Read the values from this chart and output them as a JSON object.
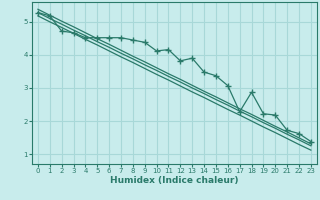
{
  "title": "",
  "xlabel": "Humidex (Indice chaleur)",
  "bg_color": "#c8ecec",
  "grid_color": "#a8d8d8",
  "line_color": "#2a7a6a",
  "xlim": [
    -0.5,
    23.5
  ],
  "ylim": [
    0.7,
    5.6
  ],
  "xticks": [
    0,
    1,
    2,
    3,
    4,
    5,
    6,
    7,
    8,
    9,
    10,
    11,
    12,
    13,
    14,
    15,
    16,
    17,
    18,
    19,
    20,
    21,
    22,
    23
  ],
  "yticks": [
    1,
    2,
    3,
    4,
    5
  ],
  "data_x": [
    0,
    1,
    2,
    3,
    4,
    5,
    6,
    7,
    8,
    9,
    10,
    11,
    12,
    13,
    14,
    15,
    16,
    17,
    18,
    19,
    20,
    21,
    22,
    23
  ],
  "data_y": [
    5.28,
    5.18,
    4.72,
    4.67,
    4.52,
    4.52,
    4.52,
    4.52,
    4.45,
    4.38,
    4.12,
    4.16,
    3.82,
    3.9,
    3.48,
    3.37,
    3.07,
    2.28,
    2.87,
    2.22,
    2.18,
    1.72,
    1.62,
    1.38
  ],
  "reg_y1": [
    5.28,
    5.1,
    4.93,
    4.75,
    4.58,
    4.4,
    4.23,
    4.05,
    3.88,
    3.7,
    3.53,
    3.35,
    3.18,
    3.0,
    2.83,
    2.65,
    2.48,
    2.3,
    2.13,
    1.95,
    1.78,
    1.6,
    1.43,
    1.25
  ],
  "reg_y2": [
    5.38,
    5.2,
    5.02,
    4.85,
    4.67,
    4.49,
    4.32,
    4.14,
    3.96,
    3.79,
    3.61,
    3.43,
    3.26,
    3.08,
    2.9,
    2.73,
    2.55,
    2.37,
    2.2,
    2.02,
    1.84,
    1.67,
    1.49,
    1.31
  ],
  "reg_y3": [
    5.18,
    5.0,
    4.83,
    4.65,
    4.47,
    4.3,
    4.12,
    3.94,
    3.77,
    3.59,
    3.41,
    3.24,
    3.06,
    2.88,
    2.71,
    2.53,
    2.35,
    2.18,
    2.0,
    1.82,
    1.65,
    1.47,
    1.29,
    1.12
  ]
}
